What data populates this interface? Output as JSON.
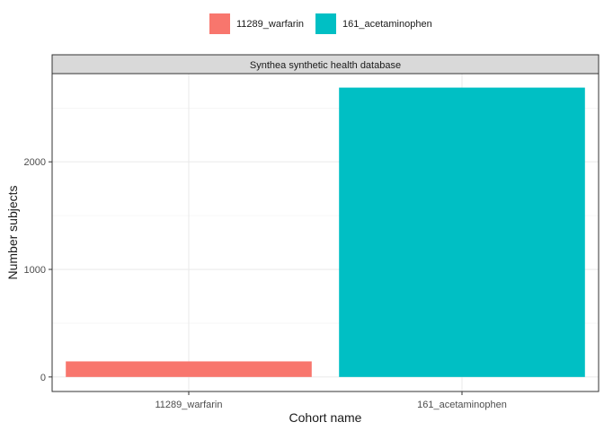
{
  "chart_data": {
    "type": "bar",
    "facet_title": "Synthea synthetic health database",
    "categories": [
      "11289_warfarin",
      "161_acetaminophen"
    ],
    "values": [
      145,
      2690
    ],
    "colors": [
      "#F8766D",
      "#00BFC4"
    ],
    "xlabel": "Cohort name",
    "ylabel": "Number subjects",
    "ylim": [
      -135,
      2820
    ],
    "yticks": [
      0,
      1000,
      2000
    ],
    "grid": true,
    "legend_position": "top",
    "legend": [
      {
        "label": "11289_warfarin",
        "color": "#F8766D"
      },
      {
        "label": "161_acetaminophen",
        "color": "#00BFC4"
      }
    ]
  }
}
